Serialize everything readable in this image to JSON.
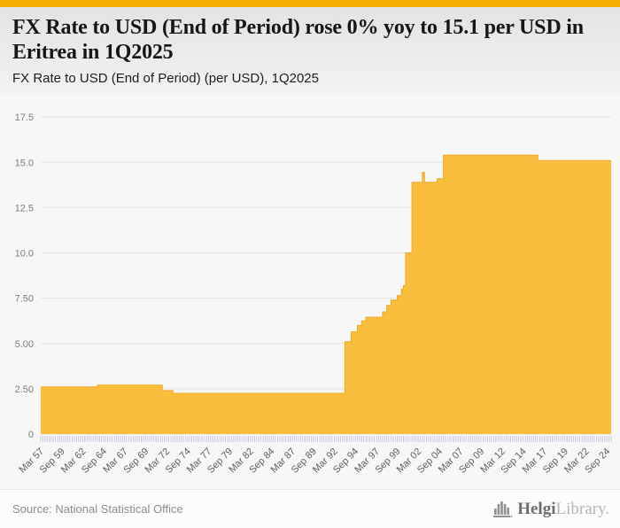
{
  "header": {
    "title": "FX Rate to USD (End of Period) rose 0% yoy to 15.1 per USD in Eritrea in 1Q2025",
    "subtitle": "FX Rate to USD (End of Period) (per USD), 1Q2025"
  },
  "footer": {
    "source": "Source: National Statistical Office",
    "brand": {
      "icon": "helgi-library-logo-icon",
      "name_primary": "Helgi",
      "name_secondary": "Library."
    }
  },
  "colors": {
    "topbar": "#F5AD00",
    "area_fill": "#F9BE3D",
    "area_stroke": "#EFA922",
    "grid": "#e3e3e3",
    "tick": "#c7cee3",
    "axis_text": "#7d7d7d",
    "xaxis_text": "#5f5f5f",
    "logo_gray": "#909090"
  },
  "chart_data": {
    "type": "area",
    "title": "FX Rate to USD (End of Period) (per USD), 1Q2025",
    "xlabel": "",
    "ylabel": "per USD",
    "ylim": [
      0,
      18.5
    ],
    "grid": true,
    "legend": "none",
    "frequency": "quarterly",
    "quarters_total": 273,
    "x_range": [
      "Mar 1957",
      "Mar 2025"
    ],
    "y_ticks": [
      "17.5",
      "15.0",
      "12.5",
      "10.0",
      "7.50",
      "5.00",
      "2.50",
      "0"
    ],
    "y_tick_values": [
      17.5,
      15.0,
      12.5,
      10.0,
      7.5,
      5.0,
      2.5,
      0
    ],
    "x_tick_labels": [
      "Mar 57",
      "Sep 59",
      "Mar 62",
      "Sep 64",
      "Mar 67",
      "Sep 69",
      "Mar 72",
      "Sep 74",
      "Mar 77",
      "Sep 79",
      "Mar 82",
      "Sep 84",
      "Mar 87",
      "Sep 89",
      "Mar 92",
      "Sep 94",
      "Mar 97",
      "Sep 99",
      "Mar 02",
      "Sep 04",
      "Mar 07",
      "Sep 09",
      "Mar 12",
      "Sep 14",
      "Mar 17",
      "Sep 19",
      "Mar 22",
      "Sep 24"
    ],
    "x_tick_step_quarters": 10,
    "series_name": "FX Rate to USD (End of Period)",
    "interpolation": "step-after",
    "breakpoints": [
      {
        "q": 0,
        "date": "1957Q1",
        "value": 2.6
      },
      {
        "q": 27,
        "date": "1963Q4",
        "value": 2.7
      },
      {
        "q": 58,
        "date": "1971Q3",
        "value": 2.4
      },
      {
        "q": 63,
        "date": "1972Q4",
        "value": 2.25
      },
      {
        "q": 145,
        "date": "1993Q2",
        "value": 5.1
      },
      {
        "q": 148,
        "date": "1994Q1",
        "value": 5.65
      },
      {
        "q": 151,
        "date": "1994Q4",
        "value": 6.0
      },
      {
        "q": 153,
        "date": "1995Q2",
        "value": 6.25
      },
      {
        "q": 155,
        "date": "1995Q4",
        "value": 6.45
      },
      {
        "q": 163,
        "date": "1997Q4",
        "value": 6.75
      },
      {
        "q": 165,
        "date": "1998Q2",
        "value": 7.1
      },
      {
        "q": 167,
        "date": "1998Q4",
        "value": 7.4
      },
      {
        "q": 170,
        "date": "1999Q3",
        "value": 7.65
      },
      {
        "q": 172,
        "date": "2000Q1",
        "value": 8.0
      },
      {
        "q": 173,
        "date": "2000Q2",
        "value": 8.2
      },
      {
        "q": 174,
        "date": "2000Q3",
        "value": 10.0
      },
      {
        "q": 177,
        "date": "2001Q2",
        "value": 13.9
      },
      {
        "q": 182,
        "date": "2002Q3",
        "value": 14.45
      },
      {
        "q": 183,
        "date": "2002Q4",
        "value": 13.9
      },
      {
        "q": 189,
        "date": "2004Q2",
        "value": 14.1
      },
      {
        "q": 192,
        "date": "2005Q1",
        "value": 15.4
      },
      {
        "q": 237,
        "date": "2016Q2",
        "value": 15.1
      }
    ],
    "final_point": {
      "date": "2025Q1",
      "value": 15.1
    }
  }
}
